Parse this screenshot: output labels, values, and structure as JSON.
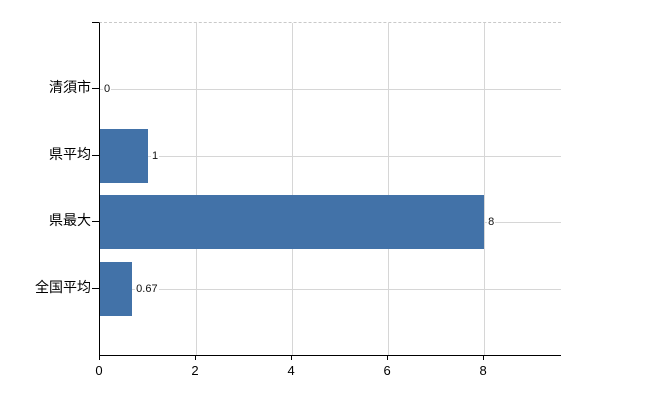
{
  "chart": {
    "title": "",
    "background": "#ffffff"
  },
  "chart_data": {
    "type": "bar",
    "orientation": "horizontal",
    "title": "",
    "xlabel": "",
    "ylabel": "",
    "categories": [
      "清須市",
      "県平均",
      "県最大",
      "全国平均"
    ],
    "values": [
      0,
      1,
      8,
      0.67
    ],
    "value_labels": [
      "0",
      "1",
      "8",
      "0.67"
    ],
    "x_ticks": [
      "0",
      "2",
      "4",
      "6",
      "8"
    ],
    "x_tick_values": [
      0,
      2,
      4,
      6,
      8
    ],
    "xlim": [
      0,
      9.6
    ],
    "grid": "on",
    "legend": "none",
    "colors": {
      "bar": "#4272a8",
      "grid": "#d6d6d6",
      "top_border": "#c9c9c9",
      "axis": "#000000",
      "text": "#000000"
    }
  }
}
